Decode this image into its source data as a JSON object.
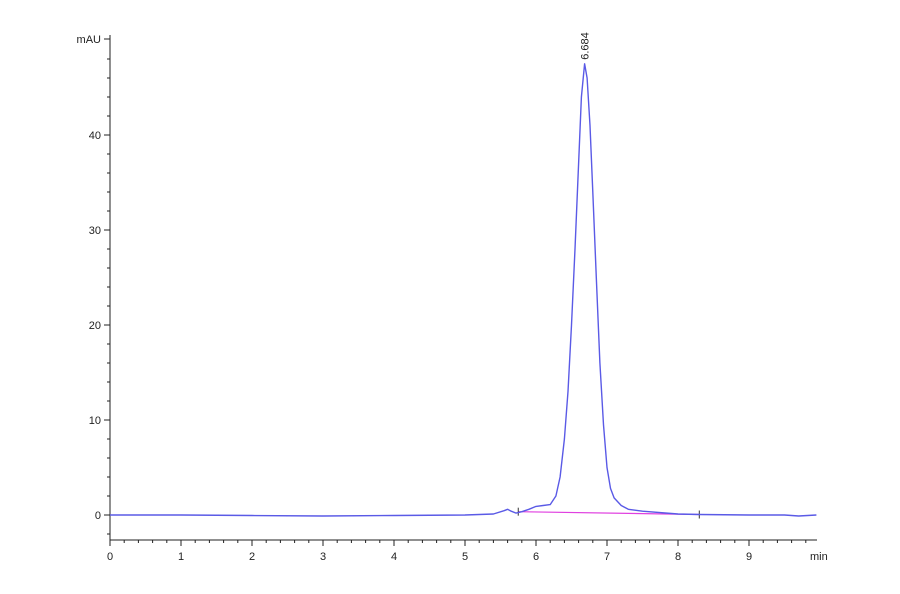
{
  "chart_data": {
    "type": "line",
    "title": "",
    "xlabel": "min",
    "ylabel": "mAU",
    "xlim": [
      0,
      9.95
    ],
    "ylim": [
      -3,
      50
    ],
    "x_ticks": [
      0,
      1,
      2,
      3,
      4,
      5,
      6,
      7,
      8,
      9
    ],
    "y_ticks": [
      0,
      10,
      20,
      30,
      40
    ],
    "grid": false,
    "colors": {
      "signal": "#5a5ae6",
      "baseline": "#e040e0",
      "axis": "#222222"
    },
    "series": [
      {
        "color": "#5a5ae6",
        "points": [
          [
            0,
            0
          ],
          [
            1,
            0
          ],
          [
            2,
            -0.05
          ],
          [
            3,
            -0.1
          ],
          [
            4,
            -0.05
          ],
          [
            5,
            0
          ],
          [
            5.4,
            0.1
          ],
          [
            5.55,
            0.45
          ],
          [
            5.6,
            0.6
          ],
          [
            5.65,
            0.4
          ],
          [
            5.72,
            0.2
          ],
          [
            5.8,
            0.35
          ],
          [
            5.9,
            0.6
          ],
          [
            6.0,
            0.9
          ],
          [
            6.1,
            1.0
          ],
          [
            6.2,
            1.1
          ],
          [
            6.28,
            2.0
          ],
          [
            6.34,
            4.0
          ],
          [
            6.4,
            8.0
          ],
          [
            6.45,
            13.0
          ],
          [
            6.5,
            20.0
          ],
          [
            6.55,
            28.0
          ],
          [
            6.6,
            37.0
          ],
          [
            6.64,
            44.0
          ],
          [
            6.684,
            47.5
          ],
          [
            6.72,
            46.0
          ],
          [
            6.76,
            41.0
          ],
          [
            6.8,
            34.0
          ],
          [
            6.85,
            25.0
          ],
          [
            6.9,
            16.0
          ],
          [
            6.95,
            9.5
          ],
          [
            7.0,
            5.0
          ],
          [
            7.05,
            2.8
          ],
          [
            7.1,
            1.8
          ],
          [
            7.2,
            1.0
          ],
          [
            7.3,
            0.6
          ],
          [
            7.5,
            0.4
          ],
          [
            8.0,
            0.1
          ],
          [
            8.3,
            0.05
          ],
          [
            9.0,
            0
          ],
          [
            9.5,
            0
          ],
          [
            9.7,
            -0.1
          ],
          [
            9.95,
            0
          ]
        ]
      }
    ],
    "baseline": {
      "color": "#e040e0",
      "points": [
        [
          5.75,
          0.35
        ],
        [
          8.3,
          0.05
        ]
      ]
    },
    "peaks": [
      {
        "x": 6.684,
        "y": 47.5,
        "label": "6.684"
      }
    ]
  }
}
